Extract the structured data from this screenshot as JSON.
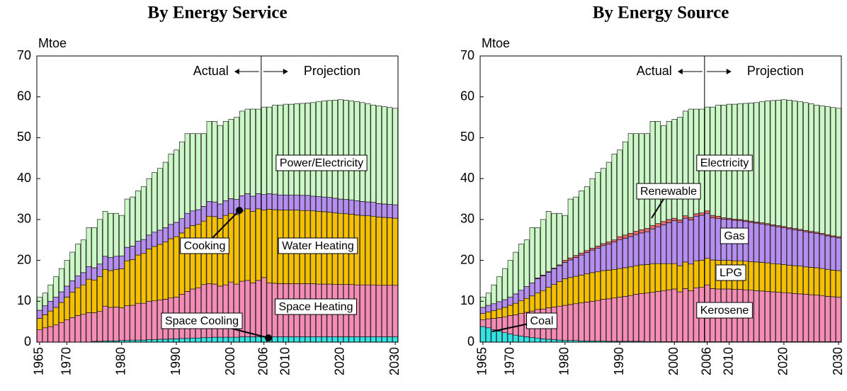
{
  "chart_data": [
    {
      "type": "bar",
      "stacked": true,
      "title": "By Energy Service",
      "y_label": "Mtoe",
      "actual_label": "Actual",
      "projection_label": "Projection",
      "ylim": [
        0,
        70
      ],
      "yticks": [
        0,
        10,
        20,
        30,
        40,
        50,
        60,
        70
      ],
      "categories": [
        "1965",
        null,
        null,
        null,
        null,
        "1970",
        null,
        null,
        null,
        null,
        null,
        null,
        null,
        null,
        null,
        "1980",
        null,
        null,
        null,
        null,
        null,
        null,
        null,
        null,
        null,
        "1990",
        null,
        null,
        null,
        null,
        null,
        null,
        null,
        null,
        null,
        "2000",
        null,
        null,
        null,
        null,
        null,
        "2006",
        null,
        null,
        null,
        "2010",
        null,
        null,
        null,
        null,
        null,
        null,
        null,
        null,
        null,
        "2020",
        null,
        null,
        null,
        null,
        null,
        null,
        null,
        null,
        null,
        "2030"
      ],
      "series": [
        {
          "name": "Space Cooling",
          "color": "#33e3e3",
          "values": [
            0,
            0,
            0,
            0,
            0,
            0,
            0,
            0,
            0,
            0,
            0.2,
            0.2,
            0.3,
            0.3,
            0.3,
            0.4,
            0.4,
            0.5,
            0.5,
            0.5,
            0.6,
            0.6,
            0.7,
            0.7,
            0.8,
            0.8,
            0.9,
            0.9,
            1,
            1,
            1.1,
            1.1,
            1.2,
            1.2,
            1.2,
            1.2,
            1.2,
            1.3,
            1.3,
            1.3,
            1.3,
            1.3,
            1.3,
            1.3,
            1.3,
            1.3,
            1.3,
            1.3,
            1.3,
            1.3,
            1.3,
            1.3,
            1.3,
            1.3,
            1.3,
            1.3,
            1.3,
            1.3,
            1.3,
            1.3,
            1.3,
            1.3,
            1.3,
            1.3,
            1.3,
            1.3
          ]
        },
        {
          "name": "Space Heating",
          "color": "#f48cb6",
          "values": [
            3,
            3.5,
            3.8,
            4.2,
            4.8,
            5.5,
            6,
            6.5,
            6.8,
            7.2,
            7,
            7.3,
            8.5,
            8.2,
            8.3,
            8,
            8.5,
            8.5,
            9,
            9,
            9.4,
            9.5,
            9.6,
            9.8,
            10,
            10.2,
            10.8,
            11.5,
            12,
            12.3,
            13,
            13.2,
            13,
            12.5,
            12.8,
            13.5,
            13,
            13.6,
            13.8,
            13.2,
            13.8,
            14.5,
            13.2,
            13.1,
            13,
            13,
            13,
            13,
            13,
            13,
            13,
            12.9,
            12.9,
            12.9,
            12.8,
            12.8,
            12.8,
            12.8,
            12.7,
            12.7,
            12.7,
            12.7,
            12.6,
            12.6,
            12.6,
            12.6
          ]
        },
        {
          "name": "Water Heating",
          "color": "#f5c000",
          "values": [
            2.8,
            3.2,
            3.8,
            4.3,
            4.9,
            5.5,
            6.2,
            6.8,
            7.2,
            8.2,
            8,
            8.5,
            9,
            9,
            9.2,
            9.5,
            11,
            11.2,
            11.8,
            12.2,
            12.8,
            13.3,
            13.6,
            14,
            14.5,
            14.8,
            15,
            15.5,
            15.5,
            15.5,
            15.5,
            16.5,
            16.5,
            16.5,
            17,
            16.8,
            17,
            17.2,
            17.5,
            17.5,
            17.5,
            16.5,
            18,
            18,
            18,
            18,
            18,
            18,
            17.9,
            17.9,
            17.8,
            17.8,
            17.7,
            17.6,
            17.5,
            17.4,
            17.3,
            17.2,
            17.1,
            17,
            16.9,
            16.8,
            16.7,
            16.6,
            16.5,
            16.4
          ]
        },
        {
          "name": "Cooking",
          "color": "#b68ef2",
          "values": [
            2,
            2.2,
            2.4,
            2.5,
            2.6,
            2.7,
            2.8,
            2.9,
            3,
            3.1,
            3,
            3.1,
            3.2,
            3.2,
            3.2,
            3.2,
            3.3,
            3.3,
            3.4,
            3.4,
            3.4,
            3.5,
            3.5,
            3.5,
            3.5,
            3.5,
            3.5,
            3.6,
            3.6,
            3.6,
            3.6,
            3.6,
            3.6,
            3.6,
            3.6,
            3.6,
            3.7,
            3.7,
            3.7,
            3.7,
            3.7,
            3.8,
            3.8,
            3.8,
            3.7,
            3.7,
            3.7,
            3.7,
            3.7,
            3.7,
            3.6,
            3.6,
            3.6,
            3.6,
            3.6,
            3.5,
            3.5,
            3.5,
            3.5,
            3.4,
            3.4,
            3.4,
            3.3,
            3.3,
            3.3,
            3.3
          ]
        },
        {
          "name": "Power/Electricity",
          "color": "#ccf7c6",
          "values": [
            3.2,
            3.1,
            4,
            5,
            5.7,
            6.3,
            7,
            7.8,
            8,
            9.5,
            9.8,
            10.9,
            11,
            10.8,
            10.5,
            9.9,
            11.8,
            12,
            12.3,
            12.9,
            13.8,
            14.6,
            15.1,
            16,
            17.2,
            17.7,
            18.8,
            19.5,
            18.9,
            18.6,
            17.8,
            19.6,
            19.7,
            19.2,
            19.4,
            19.4,
            20.1,
            20.7,
            20.7,
            21.3,
            20.7,
            21.4,
            21.2,
            21.8,
            22,
            22.2,
            22.2,
            22.3,
            22.5,
            22.6,
            22.9,
            23.2,
            23.5,
            23.7,
            24,
            24.3,
            24.3,
            24.2,
            24.2,
            24.2,
            24,
            23.8,
            23.9,
            23.8,
            23.7,
            23.6
          ]
        }
      ]
    },
    {
      "type": "bar",
      "stacked": true,
      "title": "By Energy Source",
      "y_label": "Mtoe",
      "actual_label": "Actual",
      "projection_label": "Projection",
      "ylim": [
        0,
        70
      ],
      "yticks": [
        0,
        10,
        20,
        30,
        40,
        50,
        60,
        70
      ],
      "categories": [
        "1965",
        null,
        null,
        null,
        null,
        "1970",
        null,
        null,
        null,
        null,
        null,
        null,
        null,
        null,
        null,
        "1980",
        null,
        null,
        null,
        null,
        null,
        null,
        null,
        null,
        null,
        "1990",
        null,
        null,
        null,
        null,
        null,
        null,
        null,
        null,
        null,
        "2000",
        null,
        null,
        null,
        null,
        null,
        "2006",
        null,
        null,
        null,
        "2010",
        null,
        null,
        null,
        null,
        null,
        null,
        null,
        null,
        null,
        "2020",
        null,
        null,
        null,
        null,
        null,
        null,
        null,
        null,
        null,
        "2030"
      ],
      "series": [
        {
          "name": "Coal",
          "color": "#33e3e3",
          "values": [
            3.8,
            3.5,
            3,
            2.7,
            2.3,
            2,
            1.7,
            1.5,
            1.3,
            1.1,
            1,
            0.8,
            0.7,
            0.6,
            0.5,
            0.4,
            0.4,
            0.4,
            0.3,
            0.3,
            0.3,
            0.3,
            0.3,
            0.2,
            0.2,
            0.2,
            0.2,
            0.2,
            0.2,
            0.2,
            0.1,
            0.1,
            0.1,
            0.1,
            0.1,
            0.1,
            0.1,
            0.1,
            0.1,
            0.1,
            0.1,
            0.1,
            0.1,
            0.1,
            0.1,
            0.1,
            0.1,
            0.1,
            0.1,
            0.1,
            0.1,
            0.1,
            0.1,
            0.1,
            0.1,
            0.1,
            0.1,
            0.1,
            0.1,
            0.1,
            0.1,
            0.1,
            0.1,
            0.1,
            0.1,
            0.1
          ]
        },
        {
          "name": "Kerosene",
          "color": "#f48cb6",
          "values": [
            1.7,
            2.2,
            2.8,
            3.3,
            3.9,
            4.5,
            5,
            5.5,
            6,
            6.5,
            7,
            7.3,
            7.7,
            8,
            8.3,
            8.6,
            8.8,
            9,
            9.3,
            9.5,
            9.7,
            9.9,
            10.2,
            10.4,
            10.6,
            10.8,
            11,
            11.2,
            11.5,
            11.7,
            11.9,
            12.1,
            12.3,
            12.5,
            12.7,
            12.9,
            12.2,
            13,
            12.5,
            13.2,
            13.3,
            13.9,
            13,
            12.9,
            12.9,
            12.9,
            12.8,
            12.8,
            12.7,
            12.6,
            12.5,
            12.4,
            12.3,
            12.2,
            12.1,
            12,
            11.9,
            11.8,
            11.7,
            11.6,
            11.5,
            11.4,
            11.3,
            11.1,
            11,
            10.9
          ]
        },
        {
          "name": "LPG",
          "color": "#f5c000",
          "values": [
            1.5,
            1.7,
            1.9,
            2.1,
            2.3,
            2.5,
            2.8,
            3.1,
            3.4,
            3.7,
            4,
            4.5,
            5,
            5.5,
            6,
            6.5,
            6.6,
            6.7,
            6.8,
            6.9,
            7,
            7,
            7,
            7,
            7,
            7,
            7,
            7,
            7,
            7,
            7,
            7,
            6.8,
            6.6,
            6.4,
            6.2,
            6.4,
            6.5,
            6.5,
            6.6,
            6.6,
            6.5,
            7,
            7,
            7,
            7,
            7,
            7,
            7,
            7,
            7,
            7,
            7,
            6.9,
            6.9,
            6.9,
            6.8,
            6.8,
            6.8,
            6.7,
            6.7,
            6.7,
            6.6,
            6.6,
            6.5,
            6.5
          ]
        },
        {
          "name": "Gas",
          "color": "#b68ef2",
          "values": [
            1.5,
            1.6,
            1.7,
            1.8,
            1.9,
            2,
            2.3,
            2.6,
            2.9,
            3.2,
            3.5,
            3.6,
            3.7,
            3.8,
            3.9,
            4,
            4.3,
            4.6,
            4.9,
            5.2,
            5.5,
            5.8,
            6.1,
            6.4,
            6.7,
            7,
            7.2,
            7.4,
            7.6,
            7.8,
            8,
            8.5,
            9,
            9.5,
            10,
            10.5,
            10.6,
            10.7,
            10.8,
            10.9,
            11,
            11,
            10.3,
            10.2,
            10.1,
            10,
            9.9,
            9.8,
            9.7,
            9.6,
            9.5,
            9.4,
            9.3,
            9.2,
            9.1,
            9,
            8.9,
            8.8,
            8.7,
            8.6,
            8.5,
            8.4,
            8.3,
            8.2,
            8.1,
            8
          ]
        },
        {
          "name": "Renewable",
          "color": "#e86a6a",
          "values": [
            0,
            0,
            0,
            0,
            0,
            0,
            0,
            0,
            0,
            0,
            0.2,
            0.2,
            0.2,
            0.2,
            0.2,
            0.5,
            0.5,
            0.5,
            0.5,
            0.5,
            0.5,
            0.5,
            0.5,
            0.5,
            0.5,
            0.8,
            0.8,
            0.8,
            0.8,
            0.8,
            0.8,
            0.8,
            0.8,
            0.8,
            0.8,
            0.6,
            0.6,
            0.6,
            0.6,
            0.6,
            0.6,
            0.6,
            0.6,
            0.6,
            0.3,
            0.3,
            0.3,
            0.3,
            0.3,
            0.3,
            0.3,
            0.3,
            0.3,
            0.3,
            0.3,
            0.3,
            0.3,
            0.3,
            0.3,
            0.3,
            0.3,
            0.3,
            0.3,
            0.3,
            0.3,
            0.3
          ]
        },
        {
          "name": "Electricity",
          "color": "#ccf7c6",
          "values": [
            2.5,
            3,
            4.6,
            6.1,
            7.6,
            9,
            10.2,
            11.3,
            11.4,
            13.5,
            12.3,
            13.6,
            14.7,
            13.4,
            12.6,
            11,
            14.4,
            14.3,
            15.2,
            15.6,
            17,
            18,
            18.4,
            19.5,
            21,
            21.2,
            22.8,
            24.4,
            23.9,
            23.5,
            23.2,
            25.5,
            25,
            23.5,
            24,
            24.2,
            25.1,
            25.6,
            26.5,
            25.6,
            25.4,
            25.4,
            26.5,
            27.2,
            27.6,
            27.9,
            28.1,
            28.3,
            28.6,
            28.9,
            29.2,
            29.6,
            30,
            30.4,
            30.7,
            31,
            31.2,
            31.2,
            31.2,
            31.3,
            31.2,
            31.1,
            31.2,
            31.3,
            31.4,
            31.4
          ]
        }
      ]
    }
  ]
}
